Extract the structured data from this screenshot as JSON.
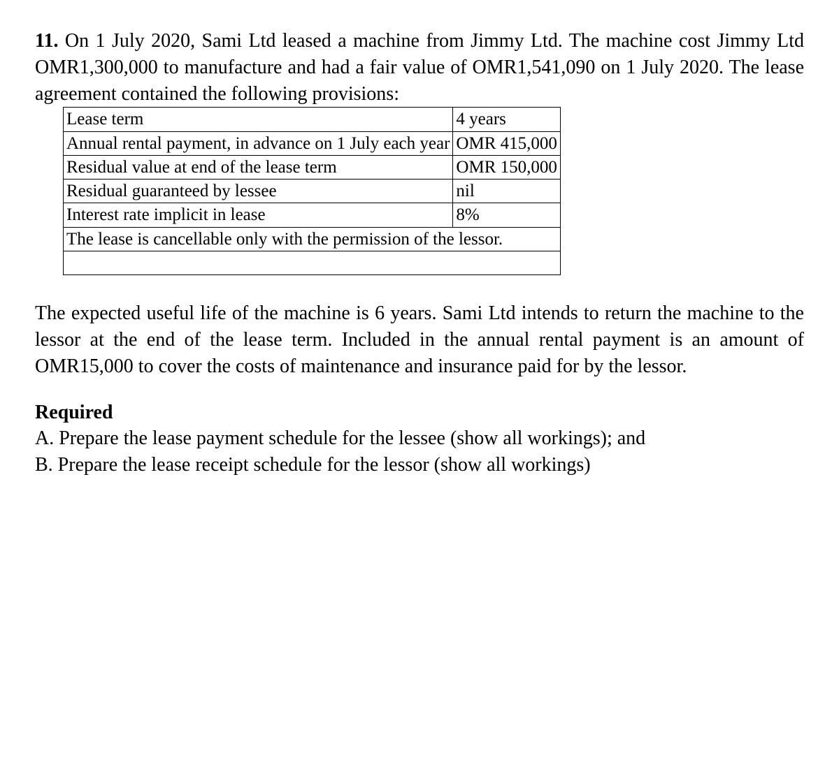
{
  "question": {
    "number": "11.",
    "intro": "On 1 July 2020, Sami Ltd leased a machine from Jimmy Ltd. The machine cost Jimmy Ltd OMR1,300,000 to manufacture and had a fair value of OMR1,541,090 on 1 July 2020. The lease agreement contained the following provisions:"
  },
  "table": {
    "rows": [
      {
        "label": "Lease term",
        "value": "4 years"
      },
      {
        "label": "Annual rental payment, in advance on 1 July each year",
        "value": "OMR 415,000"
      },
      {
        "label": "Residual value at end of the lease term",
        "value": "OMR 150,000"
      },
      {
        "label": "Residual guaranteed by lessee",
        "value": "nil"
      },
      {
        "label": "Interest rate implicit in lease",
        "value": "8%"
      }
    ],
    "note": "The lease is cancellable only with the permission of the lessor.",
    "blank": " "
  },
  "paragraph": "The expected useful life of the machine is 6 years. Sami Ltd intends to return the machine to the lessor at the end of the lease term. Included in the annual rental payment is an amount of OMR15,000 to cover the costs of maintenance and insurance paid for by the lessor.",
  "required": {
    "heading": "Required",
    "a": "A. Prepare the lease payment schedule for the lessee (show all workings); and",
    "b": "B. Prepare the lease receipt schedule for the lessor (show all workings)"
  }
}
